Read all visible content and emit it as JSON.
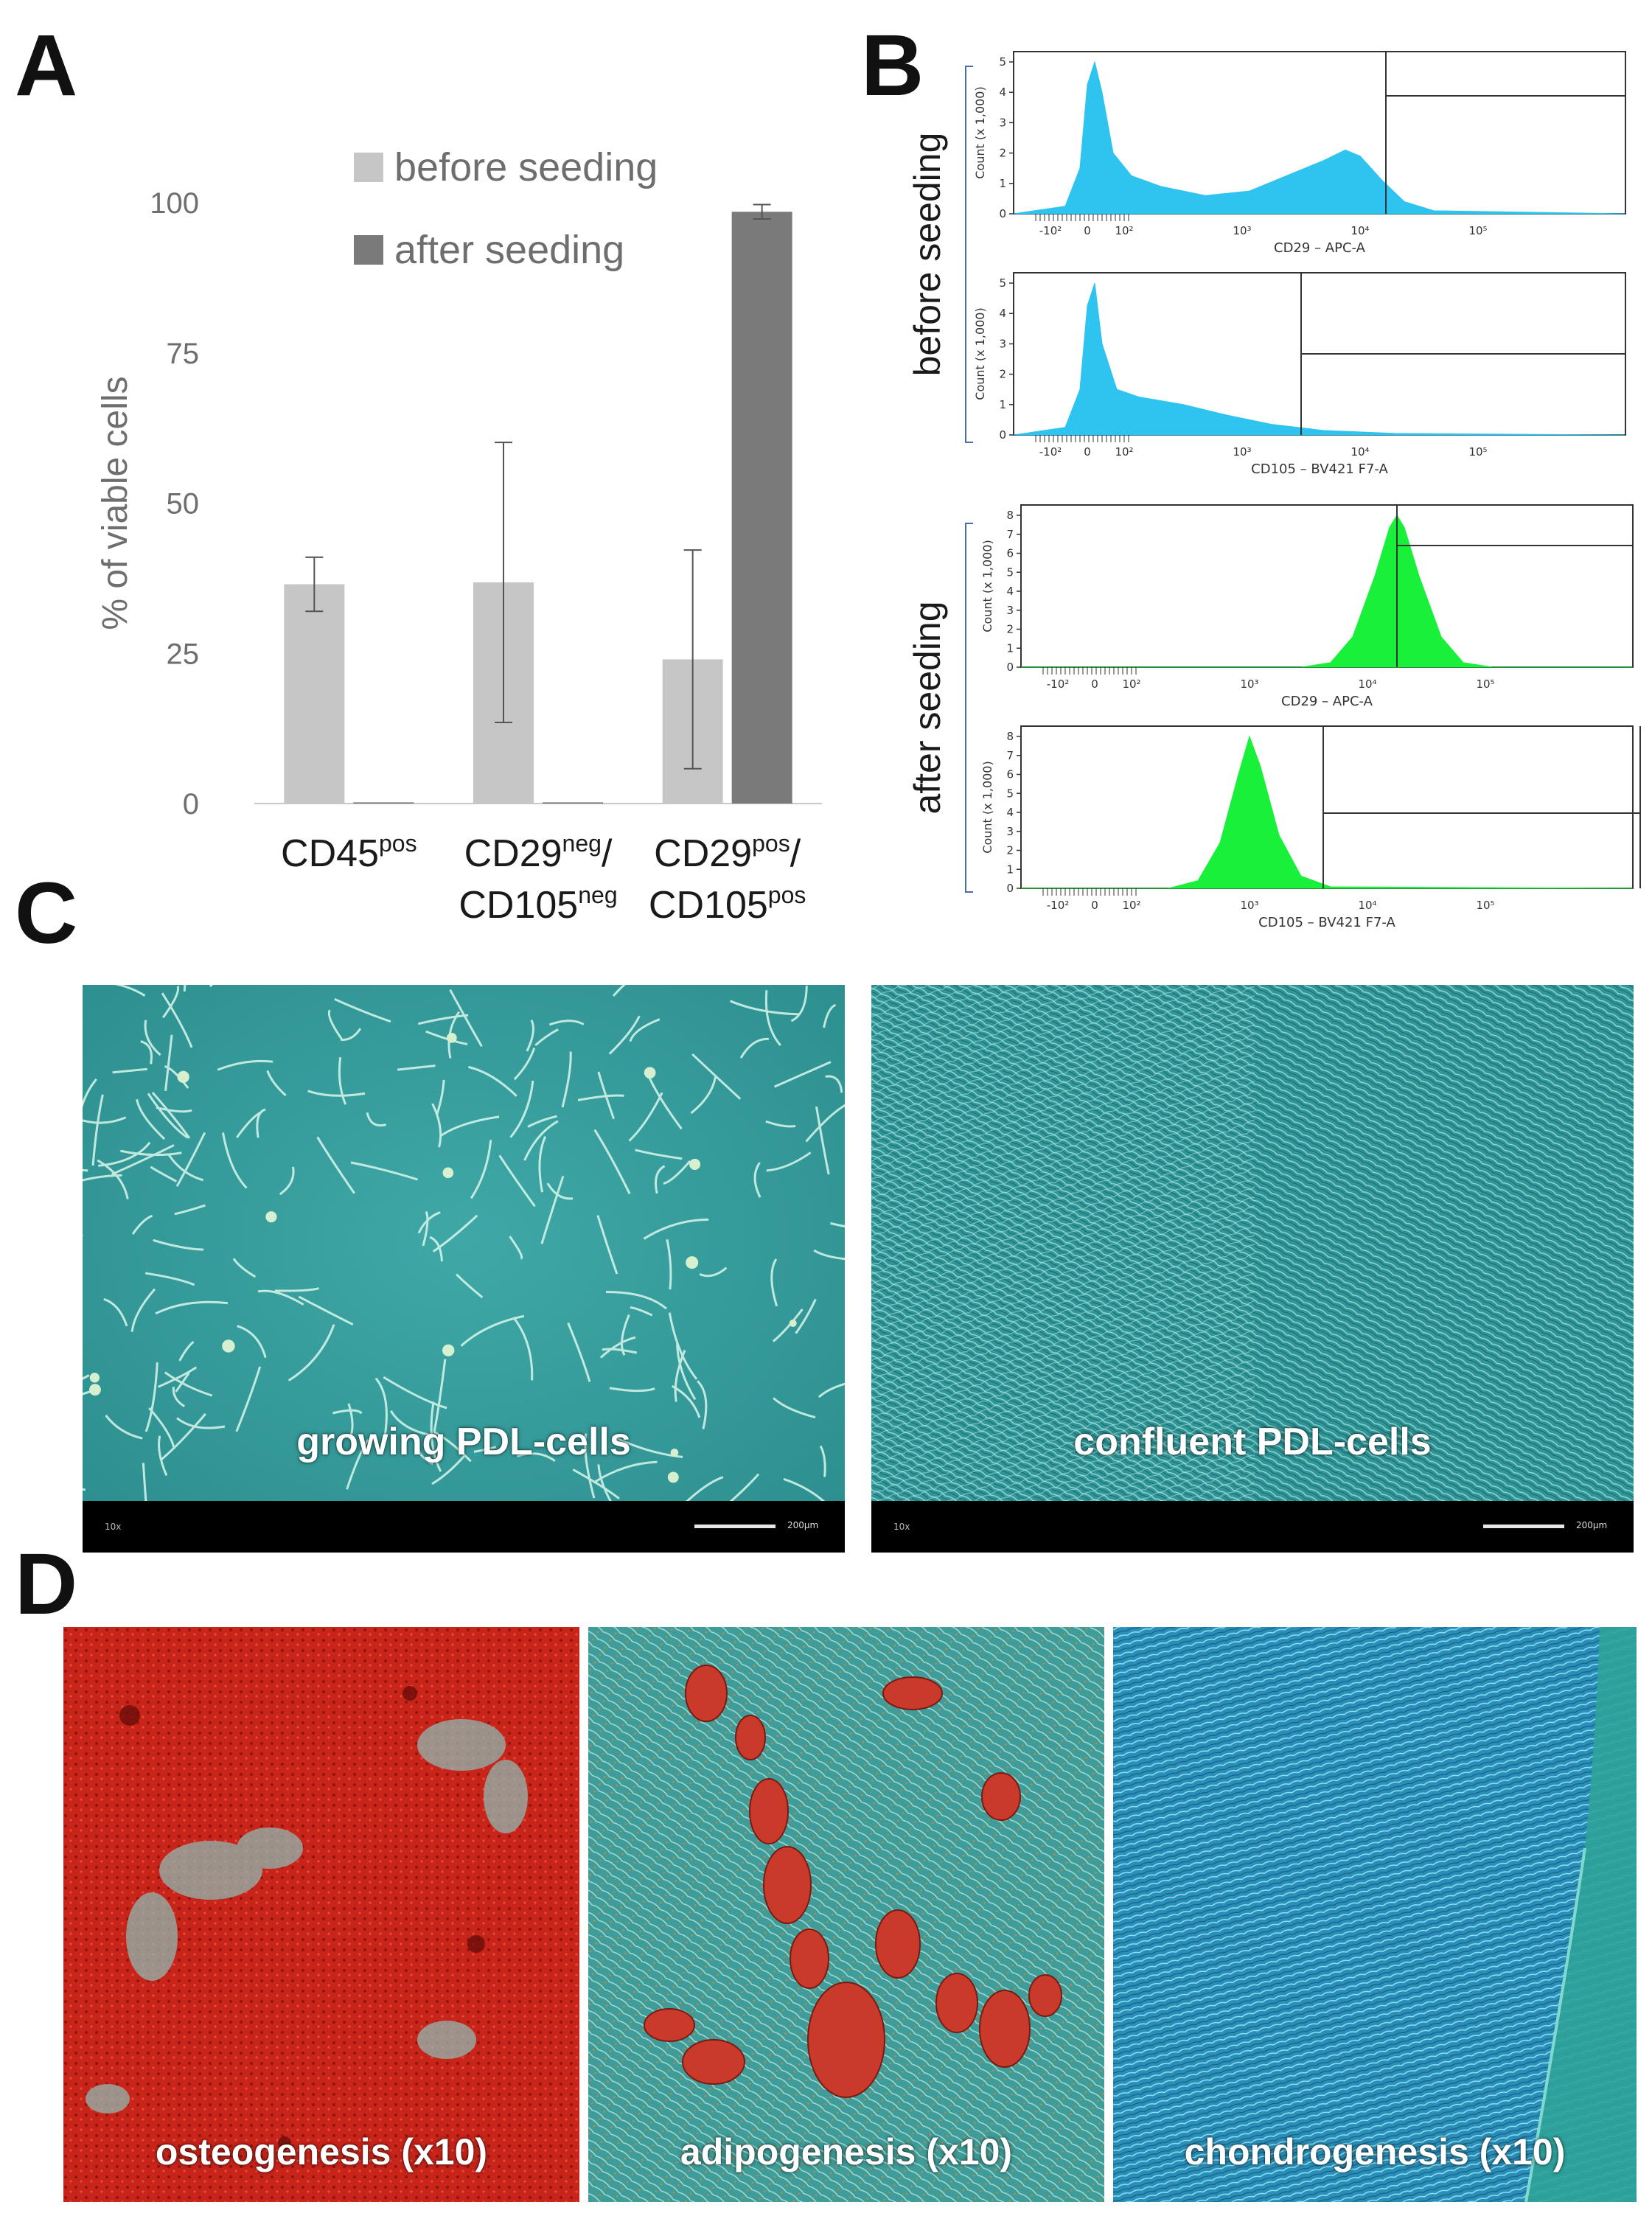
{
  "panels": {
    "a": "A",
    "b": "B",
    "c": "C",
    "d": "D"
  },
  "chart_data": {
    "type": "bar",
    "ylabel": "% of viable cells",
    "ylim": [
      0,
      100
    ],
    "yticks": [
      "0",
      "25",
      "50",
      "75",
      "100"
    ],
    "categories": [
      {
        "main": "CD45",
        "sup": "pos"
      },
      {
        "main": "CD29",
        "sup": "neg",
        "main2": "CD105",
        "sup2": "neg",
        "slash": "/"
      },
      {
        "main": "CD29",
        "sup": "pos",
        "main2": "CD105",
        "sup2": "pos",
        "slash": "/"
      }
    ],
    "series": [
      {
        "name": "before seeding",
        "color": "#c6c6c6",
        "values": [
          36.5,
          36.8,
          24.0
        ],
        "errors": [
          4.5,
          23.3,
          18.2
        ]
      },
      {
        "name": "after seeding",
        "color": "#7a7a7a",
        "values": [
          0.2,
          0.2,
          98.5
        ],
        "errors": [
          0,
          0,
          1.2
        ]
      }
    ],
    "legend": "top"
  },
  "flow": {
    "group_before": "before seeding",
    "group_after": "after seeding",
    "histograms": [
      {
        "xlabel": "CD29 – APC-A",
        "ylabel": "Count (x 1,000)",
        "yticks": [
          "0",
          "1",
          "2",
          "3",
          "4",
          "5"
        ],
        "xticks": [
          "-10²",
          "0",
          "10²",
          "10³",
          "10⁴",
          "10⁵"
        ],
        "color": "#2fc4f0"
      },
      {
        "xlabel": "CD105 – BV421 F7-A",
        "ylabel": "Count (x 1,000)",
        "yticks": [
          "0",
          "1",
          "2",
          "3",
          "4",
          "5"
        ],
        "xticks": [
          "-10²",
          "0",
          "10²",
          "10³",
          "10⁴",
          "10⁵"
        ],
        "color": "#2fc4f0"
      },
      {
        "xlabel": "CD29 – APC-A",
        "ylabel": "Count (x 1,000)",
        "yticks": [
          "0",
          "1",
          "2",
          "3",
          "4",
          "5",
          "6",
          "7",
          "8"
        ],
        "xticks": [
          "-10²",
          "0",
          "10²",
          "10³",
          "10⁴",
          "10⁵"
        ],
        "color": "#19f03a"
      },
      {
        "xlabel": "CD105 – BV421 F7-A",
        "ylabel": "Count (x 1,000)",
        "yticks": [
          "0",
          "1",
          "2",
          "3",
          "4",
          "5",
          "6",
          "7",
          "8"
        ],
        "xticks": [
          "-10²",
          "0",
          "10²",
          "10³",
          "10⁴",
          "10⁵"
        ],
        "color": "#19f03a"
      }
    ]
  },
  "micrographs_c": [
    {
      "caption": "growing PDL-cells",
      "magnification": "10x",
      "scale": "200µm"
    },
    {
      "caption": "confluent PDL-cells",
      "magnification": "10x",
      "scale": "200µm"
    }
  ],
  "micrographs_d": [
    {
      "caption": "osteogenesis (x10)"
    },
    {
      "caption": "adipogenesis (x10)"
    },
    {
      "caption": "chondrogenesis (x10)"
    }
  ]
}
